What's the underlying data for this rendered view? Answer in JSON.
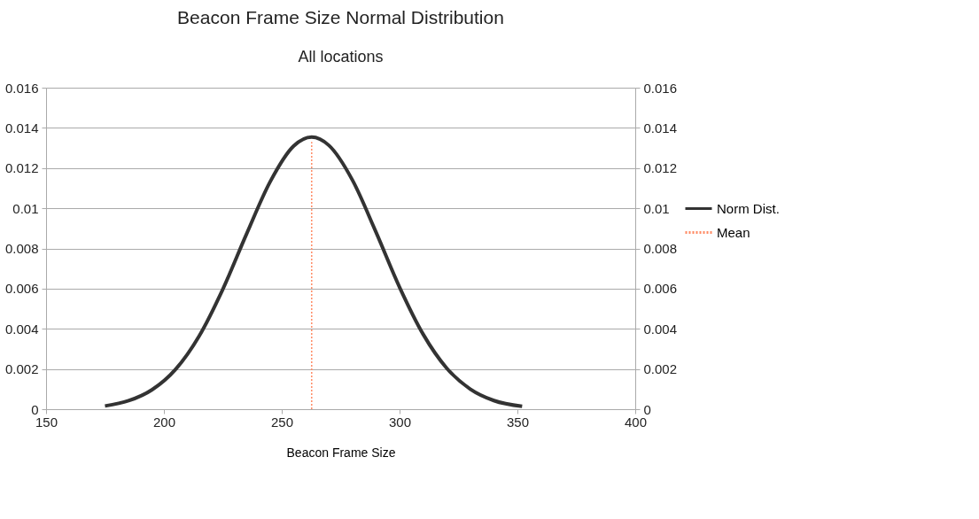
{
  "chart_data": {
    "type": "line",
    "title": "Beacon Frame Size Normal Distribution",
    "subtitle": "All locations",
    "xlabel": "Beacon Frame Size",
    "series": [
      {
        "name": "Norm Dist.",
        "color": "#333333",
        "line_style": "solid",
        "x": [
          175,
          185,
          195,
          205,
          215,
          225,
          235,
          245,
          255,
          262.7,
          270,
          280,
          290,
          300,
          310,
          320,
          330,
          340,
          352
        ],
        "values": [
          0.00016,
          0.00042,
          0.00097,
          0.00199,
          0.00365,
          0.00597,
          0.0087,
          0.0113,
          0.01309,
          0.01354,
          0.01313,
          0.0114,
          0.00881,
          0.00607,
          0.00373,
          0.00204,
          0.001,
          0.00043,
          0.00014
        ]
      },
      {
        "name": "Mean",
        "color": "#ff8c66",
        "line_style": "dotted",
        "axis": "y2",
        "x": [
          262.7,
          262.7
        ],
        "values": [
          0,
          0.0133
        ]
      }
    ],
    "xlim": [
      150,
      400
    ],
    "xticks": [
      150,
      200,
      250,
      300,
      350,
      400
    ],
    "ylim": [
      0,
      0.016
    ],
    "yticks": [
      0,
      0.002,
      0.004,
      0.006,
      0.008,
      0.01,
      0.012,
      0.014,
      0.016
    ],
    "y2lim": [
      0,
      0.016
    ],
    "y2ticks": [
      0,
      0.002,
      0.004,
      0.006,
      0.008,
      0.01,
      0.012,
      0.014,
      0.016
    ],
    "grid": "y",
    "legend": "right"
  }
}
